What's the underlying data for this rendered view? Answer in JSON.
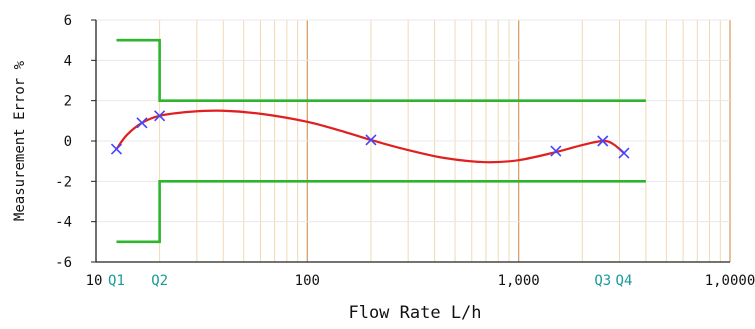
{
  "chart_data": {
    "type": "line",
    "xlabel": "Flow Rate L/h",
    "ylabel": "Measurement Error %",
    "x_scale": "log",
    "xlim": [
      10,
      10000
    ],
    "ylim": [
      -6,
      6
    ],
    "grid": true,
    "y_ticks": [
      {
        "value": 6,
        "label": "6"
      },
      {
        "value": 4,
        "label": "4"
      },
      {
        "value": 2,
        "label": "2"
      },
      {
        "value": 0,
        "label": "0"
      },
      {
        "value": -2,
        "label": "-2"
      },
      {
        "value": -4,
        "label": "-4"
      },
      {
        "value": -6,
        "label": "-6"
      }
    ],
    "x_ticks": [
      {
        "value": 10,
        "label": "10",
        "color": "#111111"
      },
      {
        "value": 100,
        "label": "100",
        "color": "#111111"
      },
      {
        "value": 1000,
        "label": "1,000",
        "color": "#111111"
      },
      {
        "value": 10000,
        "label": "1,0000",
        "color": "#111111"
      }
    ],
    "flow_points": [
      {
        "label": "Q1",
        "value": 12.5
      },
      {
        "label": "Q2",
        "value": 20
      },
      {
        "label": "Q3",
        "value": 2500
      },
      {
        "label": "Q4",
        "value": 3150
      }
    ],
    "series": [
      {
        "role": "upper-limit",
        "color": "#2db52d",
        "points": [
          [
            12.5,
            5
          ],
          [
            20,
            5
          ],
          [
            20,
            2
          ],
          [
            4000,
            2
          ]
        ]
      },
      {
        "role": "lower-limit",
        "color": "#2db52d",
        "points": [
          [
            12.5,
            -5
          ],
          [
            20,
            -5
          ],
          [
            20,
            -2
          ],
          [
            4000,
            -2
          ]
        ]
      },
      {
        "role": "error-curve",
        "color": "#e02020",
        "points": [
          [
            12.5,
            -0.4
          ],
          [
            14,
            0.3
          ],
          [
            16.5,
            0.9
          ],
          [
            20,
            1.25
          ],
          [
            28,
            1.45
          ],
          [
            40,
            1.5
          ],
          [
            60,
            1.35
          ],
          [
            100,
            0.95
          ],
          [
            150,
            0.45
          ],
          [
            200,
            0.05
          ],
          [
            300,
            -0.45
          ],
          [
            450,
            -0.85
          ],
          [
            700,
            -1.05
          ],
          [
            1000,
            -0.95
          ],
          [
            1500,
            -0.55
          ],
          [
            2000,
            -0.2
          ],
          [
            2500,
            0.0
          ],
          [
            2800,
            -0.15
          ],
          [
            3150,
            -0.6
          ]
        ]
      },
      {
        "role": "measured-points",
        "color": "#4444ff",
        "marker": "x",
        "points": [
          [
            12.5,
            -0.4
          ],
          [
            16.5,
            0.9
          ],
          [
            20,
            1.25
          ],
          [
            200,
            0.05
          ],
          [
            1500,
            -0.5
          ],
          [
            2500,
            0.0
          ],
          [
            3150,
            -0.6
          ]
        ]
      }
    ],
    "colors": {
      "major_grid": "#d9a066",
      "minor_grid": "#f0d9b5",
      "axis": "#222222",
      "flow_label": "#1a9a9a"
    }
  }
}
